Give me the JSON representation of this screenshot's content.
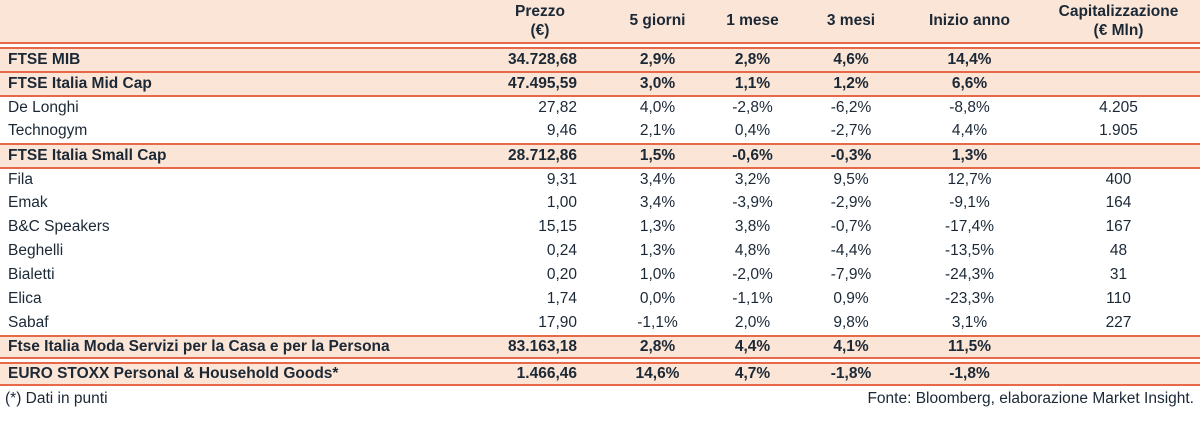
{
  "header": {
    "name": "",
    "prezzo": [
      "Prezzo",
      "(€)"
    ],
    "g5": "5 giorni",
    "m1": "1 mese",
    "m3": "3 mesi",
    "ytd": "Inizio anno",
    "cap": [
      "Capitalizzazione",
      "(€ Mln)"
    ]
  },
  "rows": [
    {
      "name": "FTSE MIB",
      "kind": "index",
      "sep": "gap-top",
      "prezzo": "34.728,68",
      "g5": "2,9%",
      "m1": "2,8%",
      "m3": "4,6%",
      "ytd": "14,4%",
      "cap": ""
    },
    {
      "name": "FTSE Italia Mid Cap",
      "kind": "index",
      "sep": "top",
      "prezzo": "47.495,59",
      "g5": "3,0%",
      "m1": "1,1%",
      "m3": "1,2%",
      "ytd": "6,6%",
      "cap": ""
    },
    {
      "name": "De Longhi",
      "kind": "stock",
      "sep": "top",
      "prezzo": "27,82",
      "g5": "4,0%",
      "m1": "-2,8%",
      "m3": "-6,2%",
      "ytd": "-8,8%",
      "cap": "4.205"
    },
    {
      "name": "Technogym",
      "kind": "stock",
      "sep": "none",
      "prezzo": "9,46",
      "g5": "2,1%",
      "m1": "0,4%",
      "m3": "-2,7%",
      "ytd": "4,4%",
      "cap": "1.905"
    },
    {
      "name": "FTSE Italia Small Cap",
      "kind": "index",
      "sep": "top",
      "prezzo": "28.712,86",
      "g5": "1,5%",
      "m1": "-0,6%",
      "m3": "-0,3%",
      "ytd": "1,3%",
      "cap": ""
    },
    {
      "name": "Fila",
      "kind": "stock",
      "sep": "top",
      "prezzo": "9,31",
      "g5": "3,4%",
      "m1": "3,2%",
      "m3": "9,5%",
      "ytd": "12,7%",
      "cap": "400"
    },
    {
      "name": "Emak",
      "kind": "stock",
      "sep": "none",
      "prezzo": "1,00",
      "g5": "3,4%",
      "m1": "-3,9%",
      "m3": "-2,9%",
      "ytd": "-9,1%",
      "cap": "164"
    },
    {
      "name": "B&C Speakers",
      "kind": "stock",
      "sep": "none",
      "prezzo": "15,15",
      "g5": "1,3%",
      "m1": "3,8%",
      "m3": "-0,7%",
      "ytd": "-17,4%",
      "cap": "167"
    },
    {
      "name": "Beghelli",
      "kind": "stock",
      "sep": "none",
      "prezzo": "0,24",
      "g5": "1,3%",
      "m1": "4,8%",
      "m3": "-4,4%",
      "ytd": "-13,5%",
      "cap": "48"
    },
    {
      "name": "Bialetti",
      "kind": "stock",
      "sep": "none",
      "prezzo": "0,20",
      "g5": "1,0%",
      "m1": "-2,0%",
      "m3": "-7,9%",
      "ytd": "-24,3%",
      "cap": "31"
    },
    {
      "name": "Elica",
      "kind": "stock",
      "sep": "none",
      "prezzo": "1,74",
      "g5": "0,0%",
      "m1": "-1,1%",
      "m3": "0,9%",
      "ytd": "-23,3%",
      "cap": "110"
    },
    {
      "name": "Sabaf",
      "kind": "stock",
      "sep": "none",
      "prezzo": "17,90",
      "g5": "-1,1%",
      "m1": "2,0%",
      "m3": "9,8%",
      "ytd": "3,1%",
      "cap": "227"
    },
    {
      "name": "Ftse Italia Moda Servizi per la Casa e per la Persona",
      "kind": "index",
      "sep": "top-bottom",
      "prezzo": "83.163,18",
      "g5": "2,8%",
      "m1": "4,4%",
      "m3": "4,1%",
      "ytd": "11,5%",
      "cap": ""
    },
    {
      "name": "EURO STOXX Personal & Household Goods*",
      "kind": "index",
      "sep": "gap-top-bottom",
      "prezzo": "1.466,46",
      "g5": "14,6%",
      "m1": "4,7%",
      "m3": "-1,8%",
      "ytd": "-1,8%",
      "cap": ""
    }
  ],
  "footer": {
    "note": "(*) Dati in punti",
    "source": "Fonte: Bloomberg, elaborazione Market Insight."
  },
  "colors": {
    "row_highlight": "#fbe5d6",
    "rule": "#e8684a",
    "text": "#1b2836"
  }
}
